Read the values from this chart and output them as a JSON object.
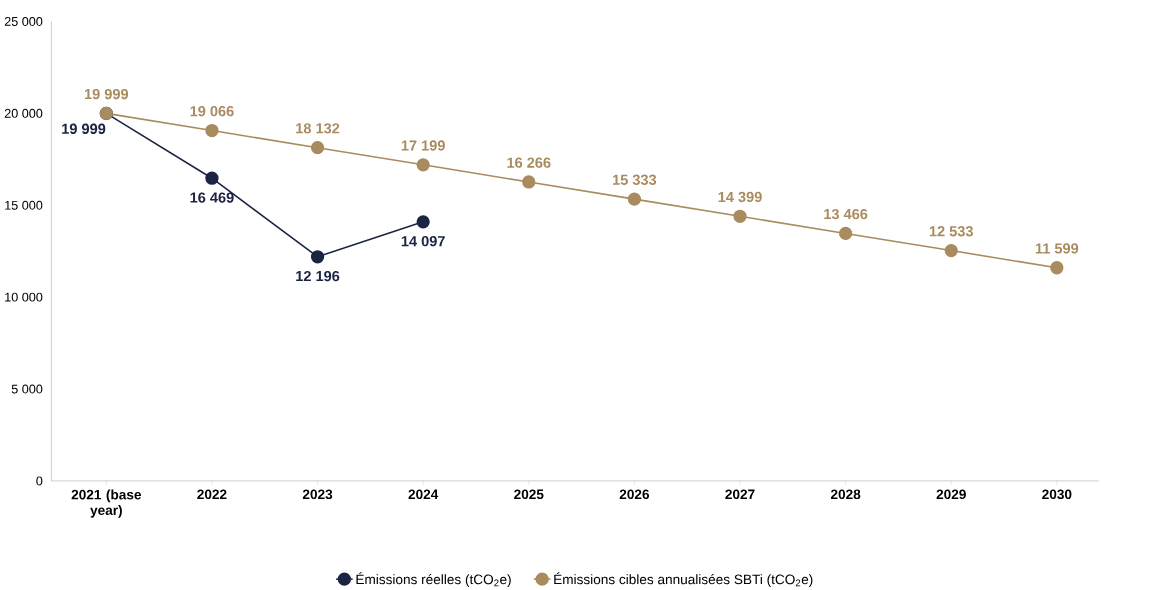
{
  "chart_data": {
    "type": "line",
    "categories": [
      "2021 (base year)",
      "2022",
      "2023",
      "2024",
      "2025",
      "2026",
      "2027",
      "2028",
      "2029",
      "2030"
    ],
    "series": [
      {
        "name": "Émissions réelles (tCO$_{2}$e)",
        "color": "#1b2442",
        "values": [
          19999,
          16469,
          12196,
          14097,
          null,
          null,
          null,
          null,
          null,
          null
        ],
        "value_labels": [
          "19 999",
          "16 469",
          "12 196",
          "14 097",
          null,
          null,
          null,
          null,
          null,
          null
        ]
      },
      {
        "name": "Émissions cibles annualisées SBTi (tCO$_{2}$e)",
        "color": "#a88b5e",
        "values": [
          19999,
          19066,
          18132,
          17199,
          16266,
          15333,
          14399,
          13466,
          12533,
          11599
        ],
        "value_labels": [
          "19 999",
          "19 066",
          "18 132",
          "17 199",
          "16 266",
          "15 333",
          "14 399",
          "13 466",
          "12 533",
          "11 599"
        ]
      }
    ],
    "ylim": [
      0,
      25000
    ],
    "yticks": [
      {
        "value": 0,
        "label": "0"
      },
      {
        "value": 5000,
        "label": "5 000"
      },
      {
        "value": 10000,
        "label": "10 000"
      },
      {
        "value": 15000,
        "label": "15 000"
      },
      {
        "value": 20000,
        "label": "20 000"
      },
      {
        "value": 25000,
        "label": "25 000"
      }
    ],
    "legend": "bottom",
    "marker": "circle",
    "line_style": "solid"
  }
}
